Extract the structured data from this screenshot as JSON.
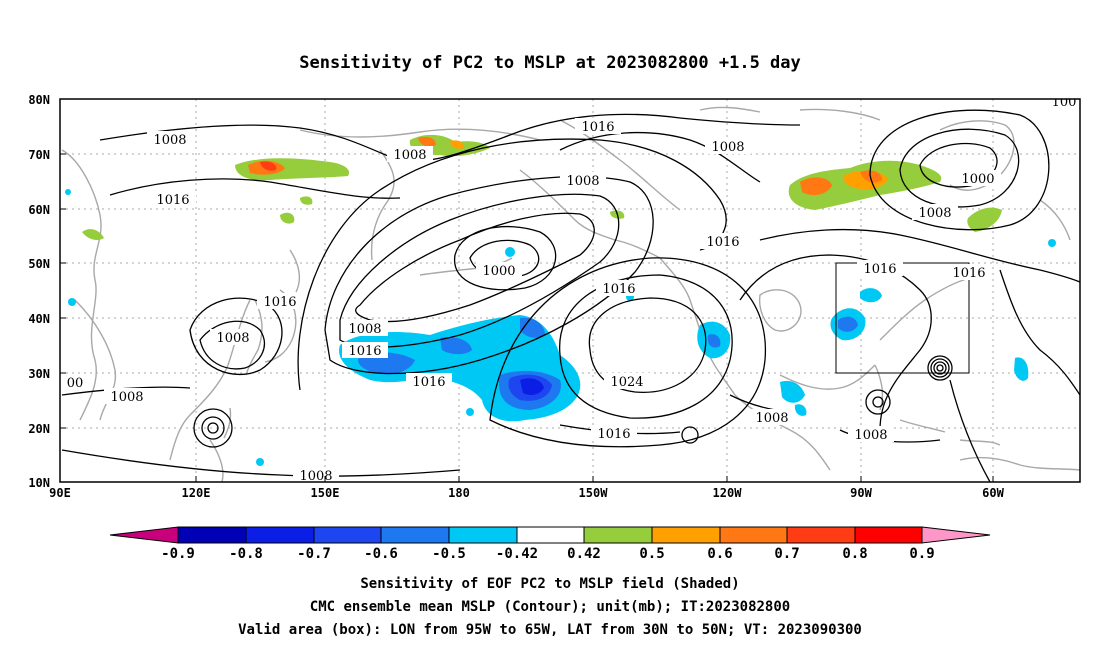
{
  "title": "Sensitivity of PC2 to MSLP at 2023082800 +1.5 day",
  "lat_ticks": [
    "80N",
    "70N",
    "60N",
    "50N",
    "40N",
    "30N",
    "20N",
    "10N"
  ],
  "lon_ticks": [
    "90E",
    "120E",
    "150E",
    "180",
    "150W",
    "120W",
    "90W",
    "60W"
  ],
  "contour_labels": {
    "c1008a": "1008",
    "c1008b": "1008",
    "c1008c": "1008",
    "c1008d": "1008",
    "c1008e": "1008",
    "c1008f": "1008",
    "c1008g": "1008",
    "c1008h": "1008",
    "c1008i": "1008",
    "c1008j": "1008",
    "c1008k": "1008",
    "c1016a": "1016",
    "c1016b": "1016",
    "c1016c": "1016",
    "c1016d": "1016",
    "c1016e": "1016",
    "c1016f": "1016",
    "c1016g": "1016",
    "c1016h": "1016",
    "c1016i": "1016",
    "c1016j": "1016",
    "c1000a": "1000",
    "c1000b": "1000",
    "c1024": "1024",
    "cedge": "00",
    "cedge2": "100"
  },
  "colorbar": {
    "labels": [
      "-0.9",
      "-0.8",
      "-0.7",
      "-0.6",
      "-0.5",
      "-0.42",
      "0.42",
      "0.5",
      "0.6",
      "0.7",
      "0.8",
      "0.9"
    ],
    "colors": {
      "lt_minus_09": "#c8007c",
      "b1": "#0000b4",
      "b2": "#0a1ee6",
      "b3": "#1e46f0",
      "b4": "#1e78f0",
      "b5": "#00c8f5",
      "white": "#ffffff",
      "g1": "#96cd3c",
      "o1": "#ffa000",
      "o2": "#ff7814",
      "r1": "#ff3c14",
      "r2": "#ff0000",
      "gt_09": "#ff96c8"
    }
  },
  "caption": {
    "line1": "Sensitivity of EOF PC2 to MSLP field (Shaded)",
    "line2": "CMC ensemble mean MSLP (Contour); unit(mb); IT:2023082800",
    "line3": "Valid area (box): LON from 95W to 65W, LAT from 30N to 50N; VT: 2023090300"
  },
  "valid_box": {
    "lon_min": -95,
    "lon_max": -65,
    "lat_min": 30,
    "lat_max": 50
  }
}
